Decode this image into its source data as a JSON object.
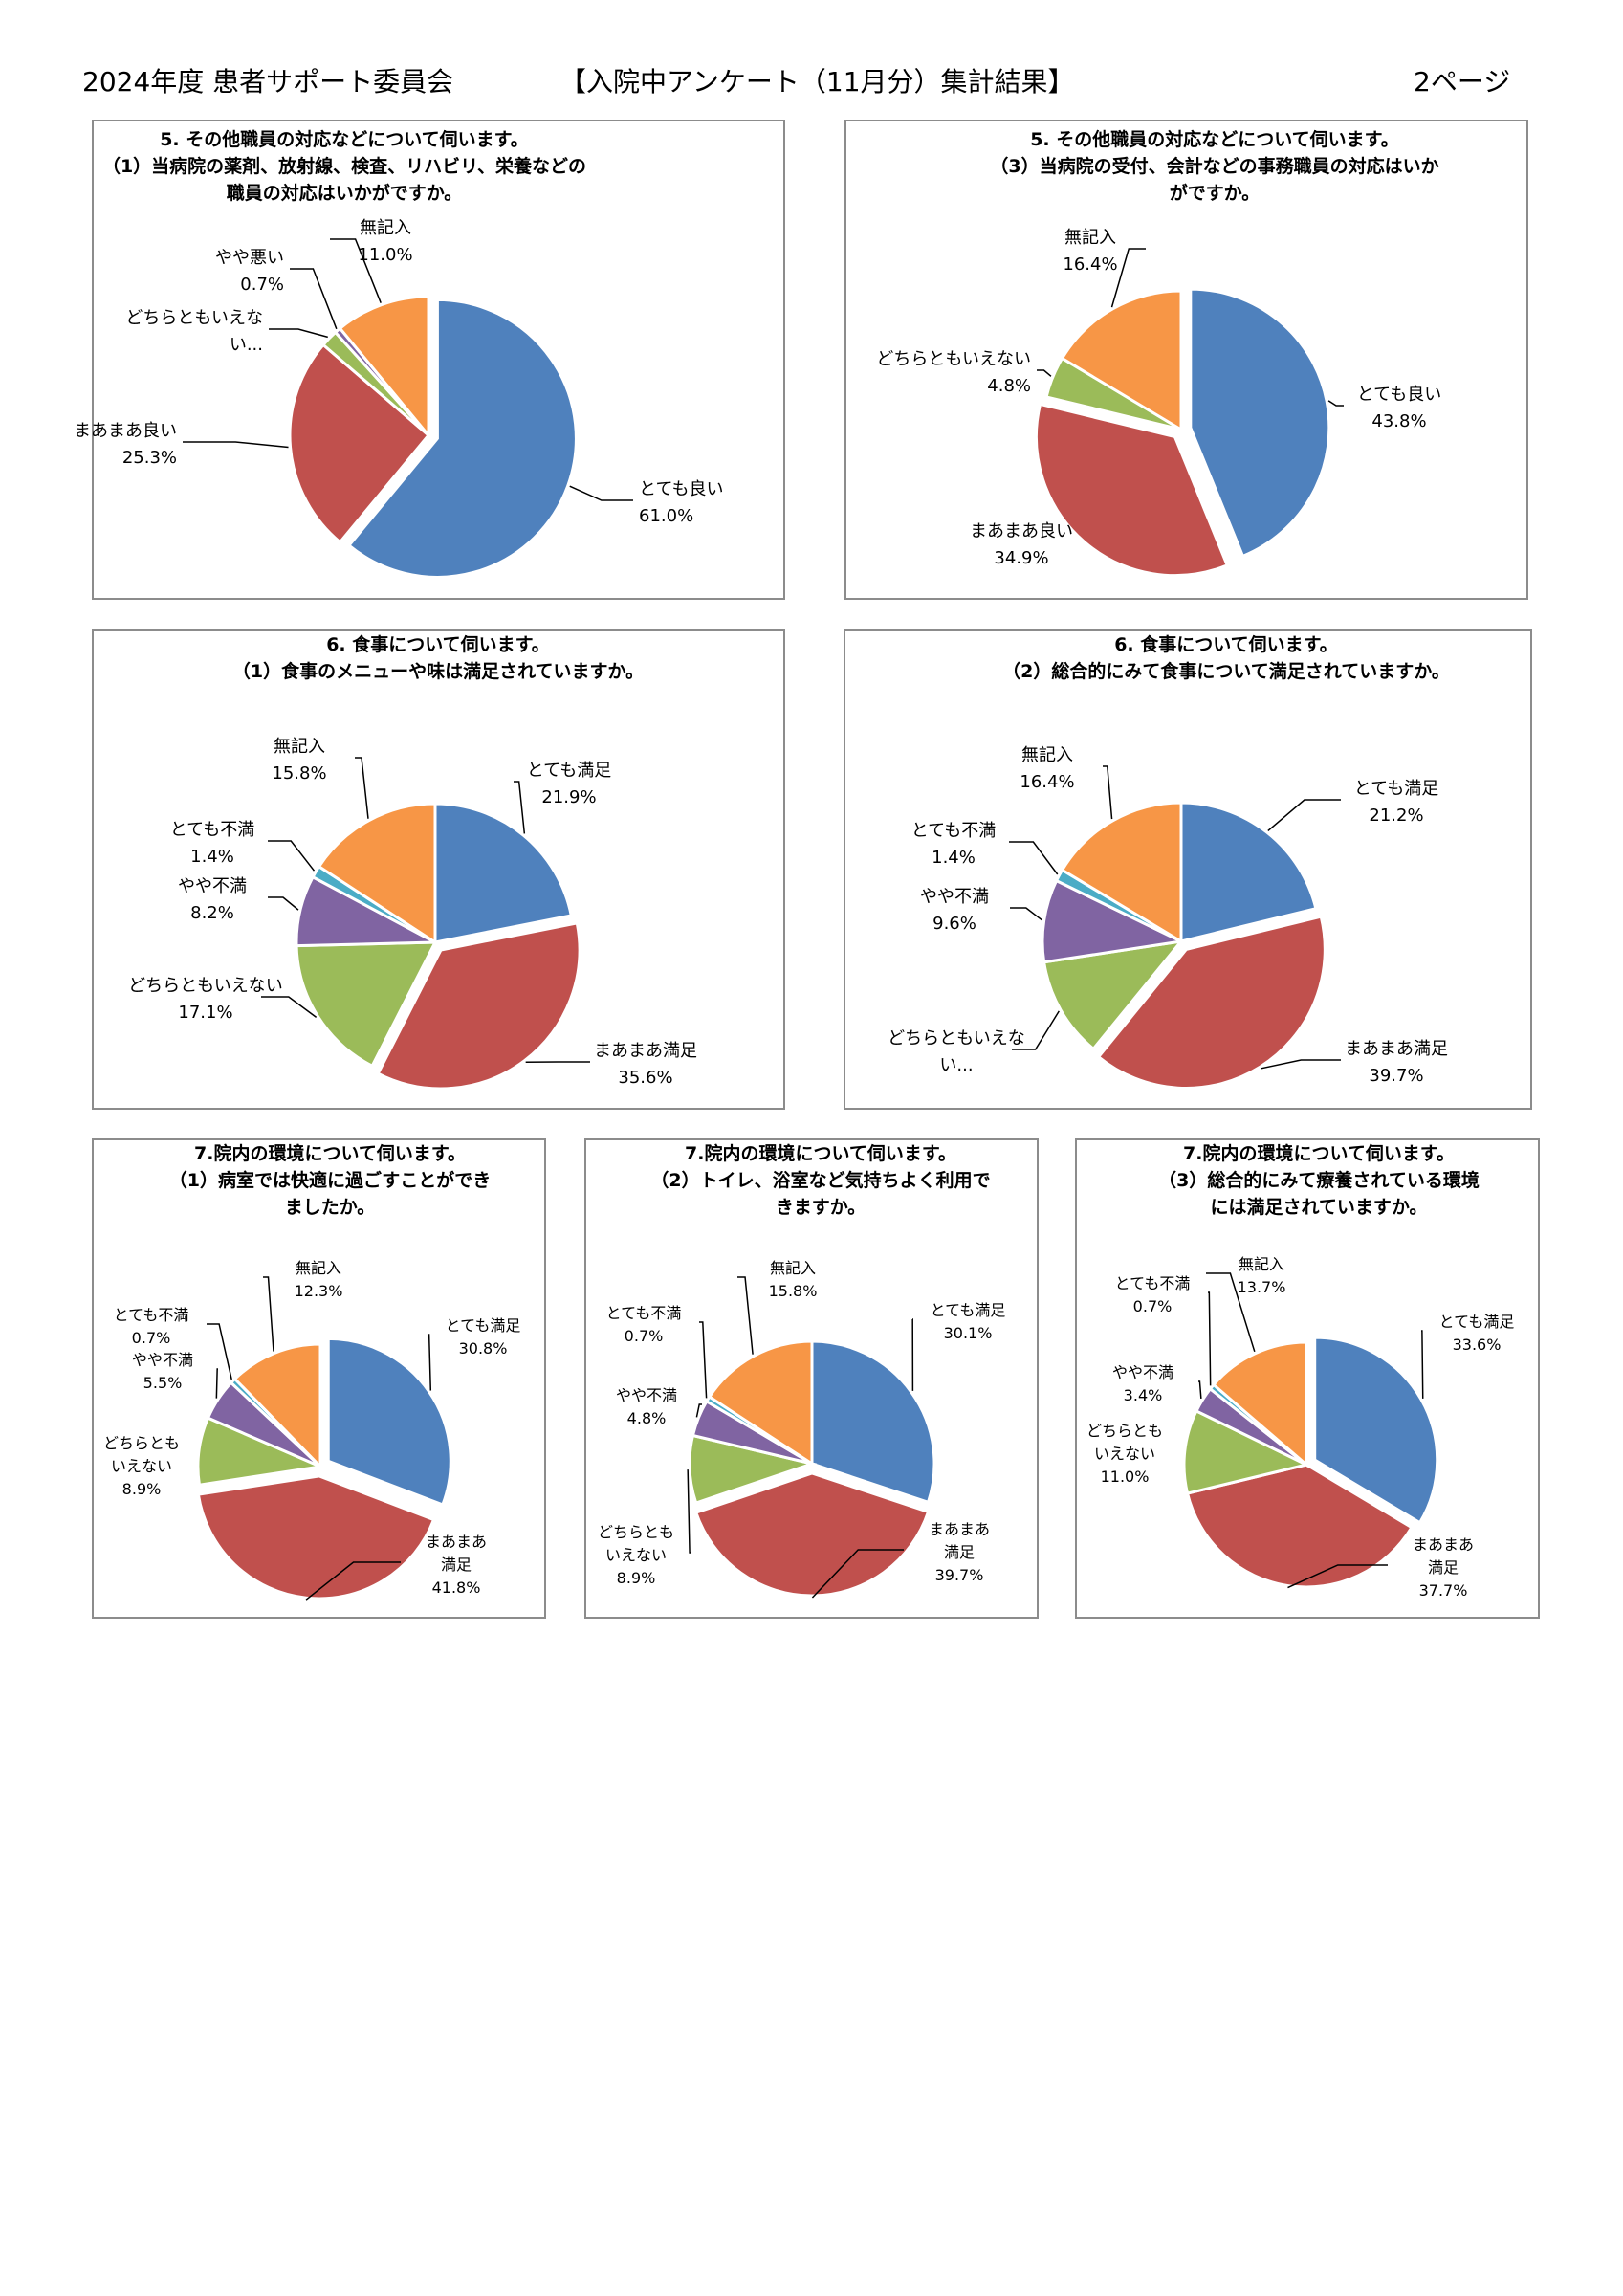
{
  "header": {
    "left": "2024年度 患者サポート委員会",
    "center": "【入院中アンケート（11月分）集計結果】",
    "right": "2ページ"
  },
  "colors": {
    "とても良い": "#4f81bd",
    "とても満足": "#4f81bd",
    "まあまあ良い": "#c0504d",
    "まあまあ満足": "#c0504d",
    "どちらともいえない": "#9bbb59",
    "やや悪い": "#8064a2",
    "やや不満": "#8064a2",
    "とても不満": "#4bacc6",
    "無記入": "#f79646"
  },
  "chart_data": [
    {
      "type": "pie",
      "title": [
        "5. その他職員の対応などについて伺います。",
        "（1）当病院の薬剤、放射線、検査、リハビリ、栄養などの",
        "職員の対応はいかがですか。"
      ],
      "slices": [
        {
          "name": "とても良い",
          "value": 61.0,
          "label": [
            "とても良い",
            "61.0%"
          ],
          "color": "#4f81bd"
        },
        {
          "name": "まあまあ良い",
          "value": 25.3,
          "label": [
            "まあまあ良い",
            "25.3%"
          ],
          "color": "#c0504d"
        },
        {
          "name": "どちらともいえない",
          "value": 2.0,
          "label": [
            "どちらともいえな",
            "い..."
          ],
          "color": "#9bbb59"
        },
        {
          "name": "やや悪い",
          "value": 0.7,
          "label": [
            "やや悪い",
            "0.7%"
          ],
          "color": "#8064a2"
        },
        {
          "name": "無記入",
          "value": 11.0,
          "label": [
            "無記入",
            "11.0%"
          ],
          "color": "#f79646"
        }
      ]
    },
    {
      "type": "pie",
      "title": [
        "5. その他職員の対応などについて伺います。",
        "（3）当病院の受付、会計などの事務職員の対応はいか",
        "がですか。"
      ],
      "slices": [
        {
          "name": "とても良い",
          "value": 43.8,
          "label": [
            "とても良い",
            "43.8%"
          ],
          "color": "#4f81bd"
        },
        {
          "name": "まあまあ良い",
          "value": 34.9,
          "label": [
            "まあまあ良い",
            "34.9%"
          ],
          "color": "#c0504d"
        },
        {
          "name": "どちらともいえない",
          "value": 4.8,
          "label": [
            "どちらともいえない",
            "4.8%"
          ],
          "color": "#9bbb59"
        },
        {
          "name": "無記入",
          "value": 16.4,
          "label": [
            "無記入",
            "16.4%"
          ],
          "color": "#f79646"
        }
      ]
    },
    {
      "type": "pie",
      "title": [
        "6. 食事について伺います。",
        "（1）食事のメニューや味は満足されていますか。"
      ],
      "slices": [
        {
          "name": "とても満足",
          "value": 21.9,
          "label": [
            "とても満足",
            "21.9%"
          ],
          "color": "#4f81bd"
        },
        {
          "name": "まあまあ満足",
          "value": 35.6,
          "label": [
            "まあまあ満足",
            "35.6%"
          ],
          "color": "#c0504d"
        },
        {
          "name": "どちらともいえない",
          "value": 17.1,
          "label": [
            "どちらともいえない",
            "17.1%"
          ],
          "color": "#9bbb59"
        },
        {
          "name": "やや不満",
          "value": 8.2,
          "label": [
            "やや不満",
            "8.2%"
          ],
          "color": "#8064a2"
        },
        {
          "name": "とても不満",
          "value": 1.4,
          "label": [
            "とても不満",
            "1.4%"
          ],
          "color": "#4bacc6"
        },
        {
          "name": "無記入",
          "value": 15.8,
          "label": [
            "無記入",
            "15.8%"
          ],
          "color": "#f79646"
        }
      ]
    },
    {
      "type": "pie",
      "title": [
        "6. 食事について伺います。",
        "（2）総合的にみて食事について満足されていますか。"
      ],
      "slices": [
        {
          "name": "とても満足",
          "value": 21.2,
          "label": [
            "とても満足",
            "21.2%"
          ],
          "color": "#4f81bd"
        },
        {
          "name": "まあまあ満足",
          "value": 39.7,
          "label": [
            "まあまあ満足",
            "39.7%"
          ],
          "color": "#c0504d"
        },
        {
          "name": "どちらともいえない",
          "value": 11.7,
          "label": [
            "どちらともいえな",
            "い..."
          ],
          "color": "#9bbb59"
        },
        {
          "name": "やや不満",
          "value": 9.6,
          "label": [
            "やや不満",
            "9.6%"
          ],
          "color": "#8064a2"
        },
        {
          "name": "とても不満",
          "value": 1.4,
          "label": [
            "とても不満",
            "1.4%"
          ],
          "color": "#4bacc6"
        },
        {
          "name": "無記入",
          "value": 16.4,
          "label": [
            "無記入",
            "16.4%"
          ],
          "color": "#f79646"
        }
      ]
    },
    {
      "type": "pie",
      "title": [
        "7.院内の環境について伺います。",
        "（1）病室では快適に過ごすことができ",
        "ましたか。"
      ],
      "slices": [
        {
          "name": "とても満足",
          "value": 30.8,
          "label": [
            "とても満足",
            "30.8%"
          ],
          "color": "#4f81bd"
        },
        {
          "name": "まあまあ満足",
          "value": 41.8,
          "label": [
            "まあまあ",
            "満足",
            "41.8%"
          ],
          "color": "#c0504d"
        },
        {
          "name": "どちらともいえない",
          "value": 8.9,
          "label": [
            "どちらとも",
            "いえない",
            "8.9%"
          ],
          "color": "#9bbb59"
        },
        {
          "name": "やや不満",
          "value": 5.5,
          "label": [
            "やや不満",
            "5.5%"
          ],
          "color": "#8064a2"
        },
        {
          "name": "とても不満",
          "value": 0.7,
          "label": [
            "とても不満",
            "0.7%"
          ],
          "color": "#4bacc6"
        },
        {
          "name": "無記入",
          "value": 12.3,
          "label": [
            "無記入",
            "12.3%"
          ],
          "color": "#f79646"
        }
      ]
    },
    {
      "type": "pie",
      "title": [
        "7.院内の環境について伺います。",
        "（2）トイレ、浴室など気持ちよく利用で",
        "きますか。"
      ],
      "slices": [
        {
          "name": "とても満足",
          "value": 30.1,
          "label": [
            "とても満足",
            "30.1%"
          ],
          "color": "#4f81bd"
        },
        {
          "name": "まあまあ満足",
          "value": 39.7,
          "label": [
            "まあまあ",
            "満足",
            "39.7%"
          ],
          "color": "#c0504d"
        },
        {
          "name": "どちらともいえない",
          "value": 8.9,
          "label": [
            "どちらとも",
            "いえない",
            "8.9%"
          ],
          "color": "#9bbb59"
        },
        {
          "name": "やや不満",
          "value": 4.8,
          "label": [
            "やや不満",
            "4.8%"
          ],
          "color": "#8064a2"
        },
        {
          "name": "とても不満",
          "value": 0.7,
          "label": [
            "とても不満",
            "0.7%"
          ],
          "color": "#4bacc6"
        },
        {
          "name": "無記入",
          "value": 15.8,
          "label": [
            "無記入",
            "15.8%"
          ],
          "color": "#f79646"
        }
      ]
    },
    {
      "type": "pie",
      "title": [
        "7.院内の環境について伺います。",
        "（3）総合的にみて療養されている環境",
        "には満足されていますか。"
      ],
      "slices": [
        {
          "name": "とても満足",
          "value": 33.6,
          "label": [
            "とても満足",
            "33.6%"
          ],
          "color": "#4f81bd"
        },
        {
          "name": "まあまあ満足",
          "value": 37.7,
          "label": [
            "まあまあ",
            "満足",
            "37.7%"
          ],
          "color": "#c0504d"
        },
        {
          "name": "どちらともいえない",
          "value": 11.0,
          "label": [
            "どちらとも",
            "いえない",
            "11.0%"
          ],
          "color": "#9bbb59"
        },
        {
          "name": "やや不満",
          "value": 3.4,
          "label": [
            "やや不満",
            "3.4%"
          ],
          "color": "#8064a2"
        },
        {
          "name": "とても不満",
          "value": 0.7,
          "label": [
            "とても不満",
            "0.7%"
          ],
          "color": "#4bacc6"
        },
        {
          "name": "無記入",
          "value": 13.7,
          "label": [
            "無記入",
            "13.7%"
          ],
          "color": "#f79646"
        }
      ]
    }
  ]
}
